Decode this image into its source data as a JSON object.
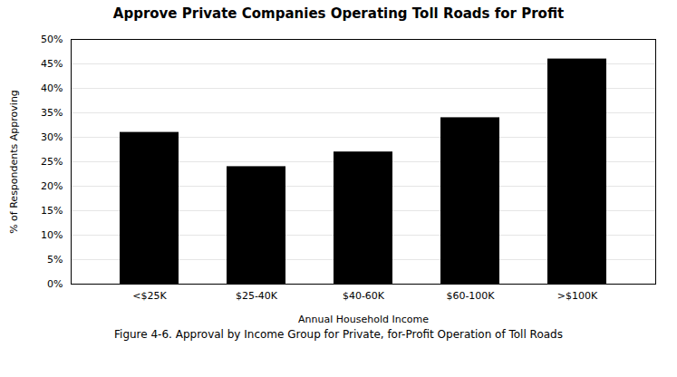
{
  "chart_data": {
    "type": "bar",
    "title": "Approve Private Companies Operating Toll Roads for Profit",
    "caption": "Figure 4-6. Approval by Income Group for Private, for-Profit Operation of Toll Roads",
    "categories": [
      "<$25K",
      "$25-40K",
      "$40-60K",
      "$60-100K",
      ">$100K"
    ],
    "values": [
      0.31,
      0.24,
      0.27,
      0.34,
      0.46
    ],
    "xlabel": "Annual Household Income",
    "ylabel": "% of Respondents Approving",
    "ylim": [
      0,
      0.5
    ],
    "yticks": [
      {
        "value": 0.0,
        "label": "0%"
      },
      {
        "value": 0.05,
        "label": "5%"
      },
      {
        "value": 0.1,
        "label": "10%"
      },
      {
        "value": 0.15,
        "label": "15%"
      },
      {
        "value": 0.2,
        "label": "20%"
      },
      {
        "value": 0.25,
        "label": "25%"
      },
      {
        "value": 0.3,
        "label": "30%"
      },
      {
        "value": 0.35,
        "label": "35%"
      },
      {
        "value": 0.4,
        "label": "40%"
      },
      {
        "value": 0.45,
        "label": "45%"
      },
      {
        "value": 0.5,
        "label": "50%"
      }
    ],
    "grid": true
  }
}
